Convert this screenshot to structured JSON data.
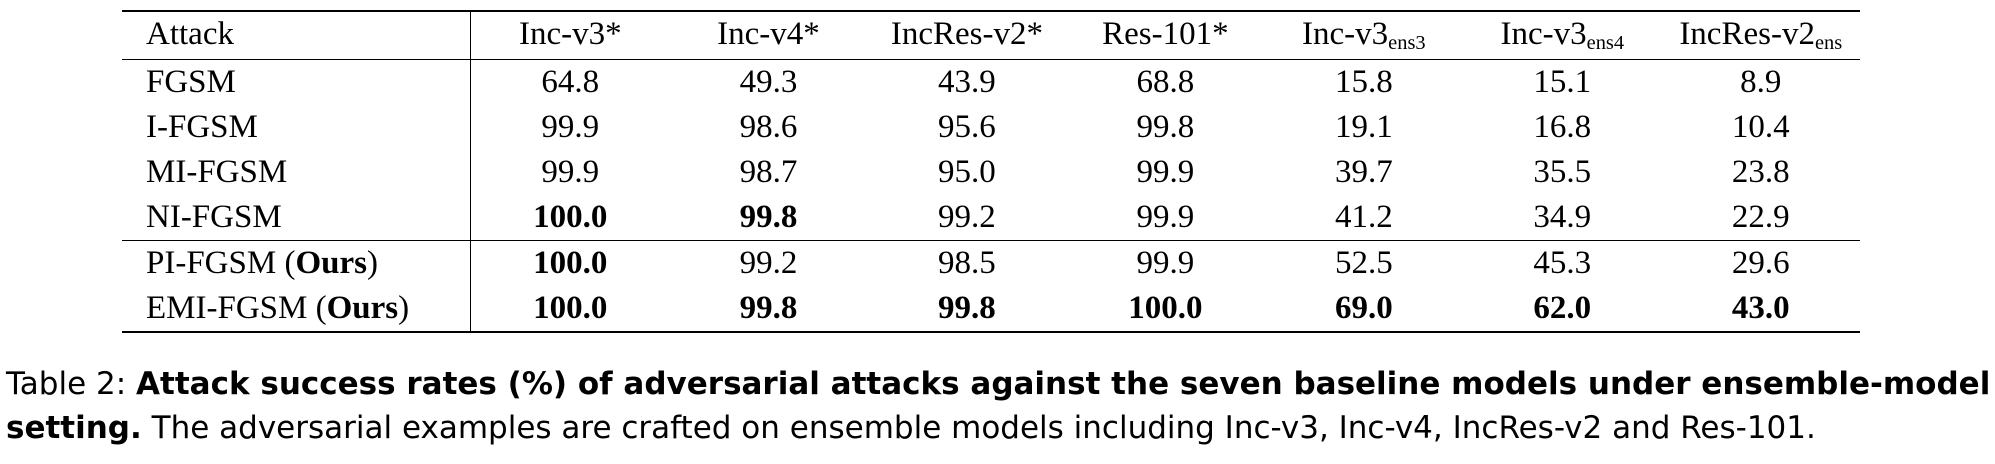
{
  "table": {
    "columns": [
      {
        "base": "Attack",
        "sub": ""
      },
      {
        "base": "Inc-v3*",
        "sub": ""
      },
      {
        "base": "Inc-v4*",
        "sub": ""
      },
      {
        "base": "IncRes-v2*",
        "sub": ""
      },
      {
        "base": "Res-101*",
        "sub": ""
      },
      {
        "base": "Inc-v3",
        "sub": "ens3"
      },
      {
        "base": "Inc-v3",
        "sub": "ens4"
      },
      {
        "base": "IncRes-v2",
        "sub": "ens"
      }
    ],
    "rows": [
      {
        "attack": "FGSM",
        "attack_suffix": "",
        "values": [
          "64.8",
          "49.3",
          "43.9",
          "68.8",
          "15.8",
          "15.1",
          "8.9"
        ],
        "bold": [
          false,
          false,
          false,
          false,
          false,
          false,
          false
        ]
      },
      {
        "attack": "I-FGSM",
        "attack_suffix": "",
        "values": [
          "99.9",
          "98.6",
          "95.6",
          "99.8",
          "19.1",
          "16.8",
          "10.4"
        ],
        "bold": [
          false,
          false,
          false,
          false,
          false,
          false,
          false
        ]
      },
      {
        "attack": "MI-FGSM",
        "attack_suffix": "",
        "values": [
          "99.9",
          "98.7",
          "95.0",
          "99.9",
          "39.7",
          "35.5",
          "23.8"
        ],
        "bold": [
          false,
          false,
          false,
          false,
          false,
          false,
          false
        ]
      },
      {
        "attack": "NI-FGSM",
        "attack_suffix": "",
        "values": [
          "100.0",
          "99.8",
          "99.2",
          "99.9",
          "41.2",
          "34.9",
          "22.9"
        ],
        "bold": [
          true,
          true,
          false,
          false,
          false,
          false,
          false
        ]
      },
      {
        "attack": "PI-FGSM (",
        "attack_suffix": "Ours",
        "values": [
          "100.0",
          "99.2",
          "98.5",
          "99.9",
          "52.5",
          "45.3",
          "29.6"
        ],
        "bold": [
          true,
          false,
          false,
          false,
          false,
          false,
          false
        ]
      },
      {
        "attack": "EMI-FGSM (",
        "attack_suffix": "Ours",
        "values": [
          "100.0",
          "99.8",
          "99.8",
          "100.0",
          "69.0",
          "62.0",
          "43.0"
        ],
        "bold": [
          true,
          true,
          true,
          true,
          true,
          true,
          true
        ]
      }
    ]
  },
  "caption": {
    "label": "Table 2:",
    "lead": "Attack success rates (%) of adversarial attacks against the seven baseline models under ensemble-model setting.",
    "text": "The adversarial examples are crafted on ensemble models including Inc-v3, Inc-v4, IncRes-v2 and Res-101."
  }
}
